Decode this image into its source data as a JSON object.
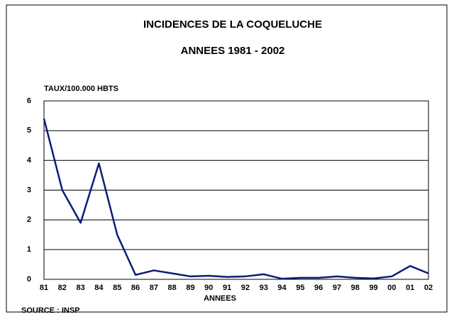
{
  "chart_data": {
    "type": "line",
    "title": "INCIDENCES DE LA COQUELUCHE",
    "subtitle": "ANNEES 1981 - 2002",
    "y_label": "TAUX/100.000 HBTS",
    "x_label": "ANNEES",
    "source": "SOURCE : INSP",
    "categories": [
      "81",
      "82",
      "83",
      "84",
      "85",
      "86",
      "87",
      "88",
      "89",
      "90",
      "91",
      "92",
      "93",
      "94",
      "95",
      "96",
      "97",
      "98",
      "99",
      "00",
      "01",
      "02"
    ],
    "series": [
      {
        "name": "Taux",
        "color": "#0c1c78",
        "values": [
          5.4,
          3.0,
          1.9,
          3.9,
          1.5,
          0.15,
          0.3,
          0.2,
          0.1,
          0.12,
          0.08,
          0.1,
          0.17,
          0.02,
          0.05,
          0.05,
          0.1,
          0.05,
          0.03,
          0.1,
          0.45,
          0.2
        ]
      }
    ],
    "ylim": [
      0,
      6
    ],
    "yticks": [
      0,
      1,
      2,
      3,
      4,
      5,
      6
    ],
    "grid": true
  }
}
